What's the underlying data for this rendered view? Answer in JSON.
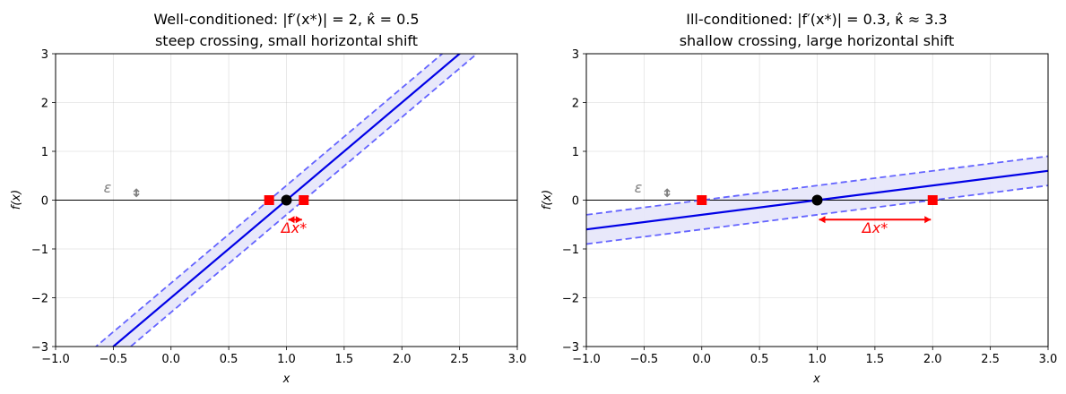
{
  "chart_data": [
    {
      "type": "line",
      "title": "Well-conditioned: |f′(x*)| = 2, κ̂ = 0.5",
      "subtitle": "steep crossing, small horizontal shift",
      "xlabel": "x",
      "ylabel": "f(x)",
      "xlim": [
        -1.0,
        3.0
      ],
      "ylim": [
        -3,
        3
      ],
      "x_ticks": [
        "−1.0",
        "−0.5",
        "0.0",
        "0.5",
        "1.0",
        "1.5",
        "2.0",
        "2.5",
        "3.0"
      ],
      "y_ticks": [
        "−3",
        "−2",
        "−1",
        "0",
        "1",
        "2",
        "3"
      ],
      "grid": true,
      "slope": 2,
      "root": 1.0,
      "band_halfwidth": 0.3,
      "perturbed_roots": [
        0.85,
        1.15
      ],
      "epsilon_label": "ε",
      "epsilon_marker": [
        -0.3,
        0.15
      ],
      "shift_label": "Δx*",
      "arrow_y": -0.4,
      "colors": {
        "line": "#0000e6",
        "band_fill": "#e6e6fa",
        "band_edge": "#6464ff",
        "perturbed": "#ff0000",
        "root": "#000000",
        "eps": "#808080"
      }
    },
    {
      "type": "line",
      "title": "Ill-conditioned: |f′(x*)| = 0.3, κ̂ ≈ 3.3",
      "subtitle": "shallow crossing, large horizontal shift",
      "xlabel": "x",
      "ylabel": "f(x)",
      "xlim": [
        -1.0,
        3.0
      ],
      "ylim": [
        -3,
        3
      ],
      "x_ticks": [
        "−1.0",
        "−0.5",
        "0.0",
        "0.5",
        "1.0",
        "1.5",
        "2.0",
        "2.5",
        "3.0"
      ],
      "y_ticks": [
        "−3",
        "−2",
        "−1",
        "0",
        "1",
        "2",
        "3"
      ],
      "grid": true,
      "slope": 0.3,
      "root": 1.0,
      "band_halfwidth": 0.3,
      "perturbed_roots": [
        0.0,
        2.0
      ],
      "epsilon_label": "ε",
      "epsilon_marker": [
        -0.3,
        0.15
      ],
      "shift_label": "Δx*",
      "arrow_y": -0.4,
      "colors": {
        "line": "#0000e6",
        "band_fill": "#e6e6fa",
        "band_edge": "#6464ff",
        "perturbed": "#ff0000",
        "root": "#000000",
        "eps": "#808080"
      }
    }
  ]
}
